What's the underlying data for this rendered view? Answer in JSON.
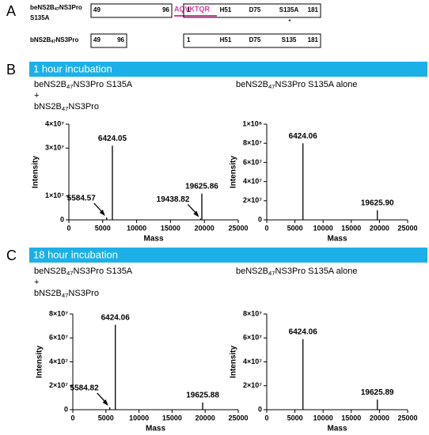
{
  "panel_labels": [
    "A",
    "B",
    "C"
  ],
  "constructs": [
    {
      "name_parts": [
        "beNS2B",
        "47",
        "NS3Pro"
      ],
      "name_line2": "S135A",
      "box1": [
        "49",
        "96"
      ],
      "linker": "AQVKTQR",
      "box2": [
        "1",
        "H51",
        "D75",
        "S135A",
        "181"
      ],
      "mark": "*"
    },
    {
      "name_parts": [
        "bNS2B",
        "47",
        "NS3Pro"
      ],
      "box1": [
        "49",
        "96"
      ],
      "box2": [
        "1",
        "H51",
        "D75",
        "S135",
        "181"
      ]
    }
  ],
  "banners": [
    "1 hour incubation",
    "18 hour incubation"
  ],
  "chart_data": [
    {
      "type": "stem",
      "subtitle": [
        [
          "beNS2B",
          "47",
          "NS3Pro S135A"
        ],
        [
          "+"
        ],
        [
          "bNS2B",
          "47",
          "NS3Pro"
        ]
      ],
      "x": [
        5584.57,
        6424.05,
        19438.82,
        19625.86
      ],
      "values": [
        1000000,
        31000000,
        500000,
        11000000
      ],
      "peak_labels": [
        "5584.57",
        "6424.05",
        "19438.82",
        "19625.86"
      ],
      "color": "#000000",
      "xlim": [
        0,
        25000
      ],
      "xticks": [
        0,
        5000,
        10000,
        15000,
        20000,
        25000
      ],
      "ylim": [
        0,
        40000000
      ],
      "yticks": [
        {
          "value": 0,
          "label": "0"
        },
        {
          "value": 10000000,
          "label": "1×10⁷"
        },
        {
          "value": 30000000,
          "label": "3×10⁷"
        },
        {
          "value": 40000000,
          "label": "4×10⁷"
        }
      ],
      "xlabel": "Mass",
      "ylabel": "Intensity"
    },
    {
      "type": "stem",
      "subtitle": [
        [
          "beNS2B",
          "47",
          "NS3Pro S135A alone"
        ]
      ],
      "x": [
        6424.06,
        19625.9
      ],
      "values": [
        80000000,
        10000000
      ],
      "peak_labels": [
        "6424.06",
        "19625.90"
      ],
      "color": "#000000",
      "xlim": [
        0,
        25000
      ],
      "xticks": [
        0,
        5000,
        10000,
        15000,
        20000,
        25000
      ],
      "ylim": [
        0,
        100000000
      ],
      "yticks": [
        {
          "value": 0,
          "label": "0"
        },
        {
          "value": 20000000,
          "label": "2×10⁷"
        },
        {
          "value": 40000000,
          "label": "4×10⁷"
        },
        {
          "value": 60000000,
          "label": "6×10⁷"
        },
        {
          "value": 80000000,
          "label": "8×10⁷"
        },
        {
          "value": 100000000,
          "label": "1×10⁸"
        }
      ],
      "xlabel": "Mass",
      "ylabel": "Intensity"
    },
    {
      "type": "stem",
      "subtitle": [
        [
          "beNS2B",
          "47",
          "NS3Pro S135A"
        ],
        [
          "+"
        ],
        [
          "bNS2B",
          "47",
          "NS3Pro"
        ]
      ],
      "x": [
        5584.82,
        6424.06,
        19625.88
      ],
      "values": [
        2000000,
        71000000,
        6000000
      ],
      "peak_labels": [
        "5584.82",
        "6424.06",
        "19625.88"
      ],
      "color": "#000000",
      "xlim": [
        0,
        25000
      ],
      "xticks": [
        0,
        5000,
        10000,
        15000,
        20000,
        25000
      ],
      "ylim": [
        0,
        80000000
      ],
      "yticks": [
        {
          "value": 0,
          "label": "0"
        },
        {
          "value": 20000000,
          "label": "2×10⁷"
        },
        {
          "value": 40000000,
          "label": "4×10⁷"
        },
        {
          "value": 60000000,
          "label": "6×10⁷"
        },
        {
          "value": 80000000,
          "label": "8×10⁷"
        }
      ],
      "xlabel": "Mass",
      "ylabel": "Intensity"
    },
    {
      "type": "stem",
      "subtitle": [
        [
          "beNS2B",
          "47",
          "NS3Pro S135A alone"
        ]
      ],
      "x": [
        6424.06,
        19625.89
      ],
      "values": [
        59000000,
        8500000
      ],
      "peak_labels": [
        "6424.06",
        "19625.89"
      ],
      "color": "#000000",
      "xlim": [
        0,
        25000
      ],
      "xticks": [
        0,
        5000,
        10000,
        15000,
        20000,
        25000
      ],
      "ylim": [
        0,
        80000000
      ],
      "yticks": [
        {
          "value": 0,
          "label": "0"
        },
        {
          "value": 20000000,
          "label": "2×10⁷"
        },
        {
          "value": 40000000,
          "label": "4×10⁷"
        },
        {
          "value": 60000000,
          "label": "6×10⁷"
        },
        {
          "value": 80000000,
          "label": "8×10⁷"
        }
      ],
      "xlabel": "Mass",
      "ylabel": "Intensity"
    }
  ]
}
